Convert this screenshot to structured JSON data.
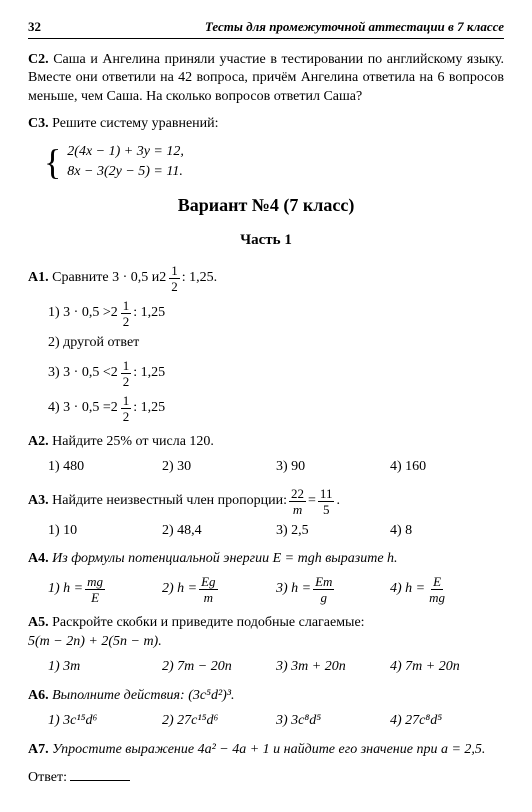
{
  "header": {
    "page_number": "32",
    "running_title": "Тесты для промежуточной аттестации в 7 классе"
  },
  "c2": {
    "label": "С2.",
    "text": "Саша и Ангелина приняли участие в тестировании по английскому языку. Вместе они ответили на 42 вопроса, причём Ангелина ответила на 6 вопросов меньше, чем Саша. На сколько вопросов ответил Саша?"
  },
  "c3": {
    "label": "С3.",
    "intro": "Решите систему уравнений:",
    "eq1": "2(4x − 1) + 3y = 12,",
    "eq2": "8x − 3(2y − 5) = 11."
  },
  "variant_title": "Вариант №4 (7 класс)",
  "part_title": "Часть 1",
  "a1": {
    "label": "А1.",
    "intro_a": "Сравните 3 · 0,5 и ",
    "mixed_whole": "2",
    "mixed_num": "1",
    "mixed_den": "2",
    "intro_b": " : 1,25.",
    "opt1a": "1)  3 · 0,5 > ",
    "opt1b": " : 1,25",
    "opt2": "2)  другой ответ",
    "opt3a": "3)  3 · 0,5 < ",
    "opt3b": " : 1,25",
    "opt4a": "4)  3 · 0,5 = ",
    "opt4b": " : 1,25"
  },
  "a2": {
    "label": "А2.",
    "q": "Найдите 25% от числа 120.",
    "o1": "1) 480",
    "o2": "2) 30",
    "o3": "3) 90",
    "o4": "4) 160"
  },
  "a3": {
    "label": "А3.",
    "q_a": "Найдите неизвестный член пропорции: ",
    "f1n": "22",
    "f1d": "m",
    "eq": " = ",
    "f2n": "11",
    "f2d": "5",
    "dot": ".",
    "o1": "1) 10",
    "o2": "2) 48,4",
    "o3": "3) 2,5",
    "o4": "4) 8"
  },
  "a4": {
    "label": "А4.",
    "q": "Из формулы потенциальной энергии E = mgh выразите h.",
    "o1_pre": "1)  h = ",
    "o1n": "mg",
    "o1d": "E",
    "o2_pre": "2)  h = ",
    "o2n": "Eg",
    "o2d": "m",
    "o3_pre": "3)  h = ",
    "o3n": "Em",
    "o3d": "g",
    "o4_pre": "4)  h = ",
    "o4n": "E",
    "o4d": "mg"
  },
  "a5": {
    "label": "А5.",
    "q1": "Раскройте скобки и приведите подобные слагаемые:",
    "q2": "5(m − 2n) + 2(5n − m).",
    "o1": "1) 3m",
    "o2": "2) 7m − 20n",
    "o3": "3) 3m + 20n",
    "o4": "4) 7m + 20n"
  },
  "a6": {
    "label": "А6.",
    "q": "Выполните действия: (3c⁵d²)³.",
    "o1": "1) 3c¹⁵d⁶",
    "o2": "2) 27c¹⁵d⁶",
    "o3": "3) 3c⁸d⁵",
    "o4": "4) 27c⁸d⁵"
  },
  "a7": {
    "label": "А7.",
    "q": "Упростите выражение 4a² − 4a + 1 и найдите его значение при a = 2,5.",
    "answer_label": "Ответ:"
  }
}
